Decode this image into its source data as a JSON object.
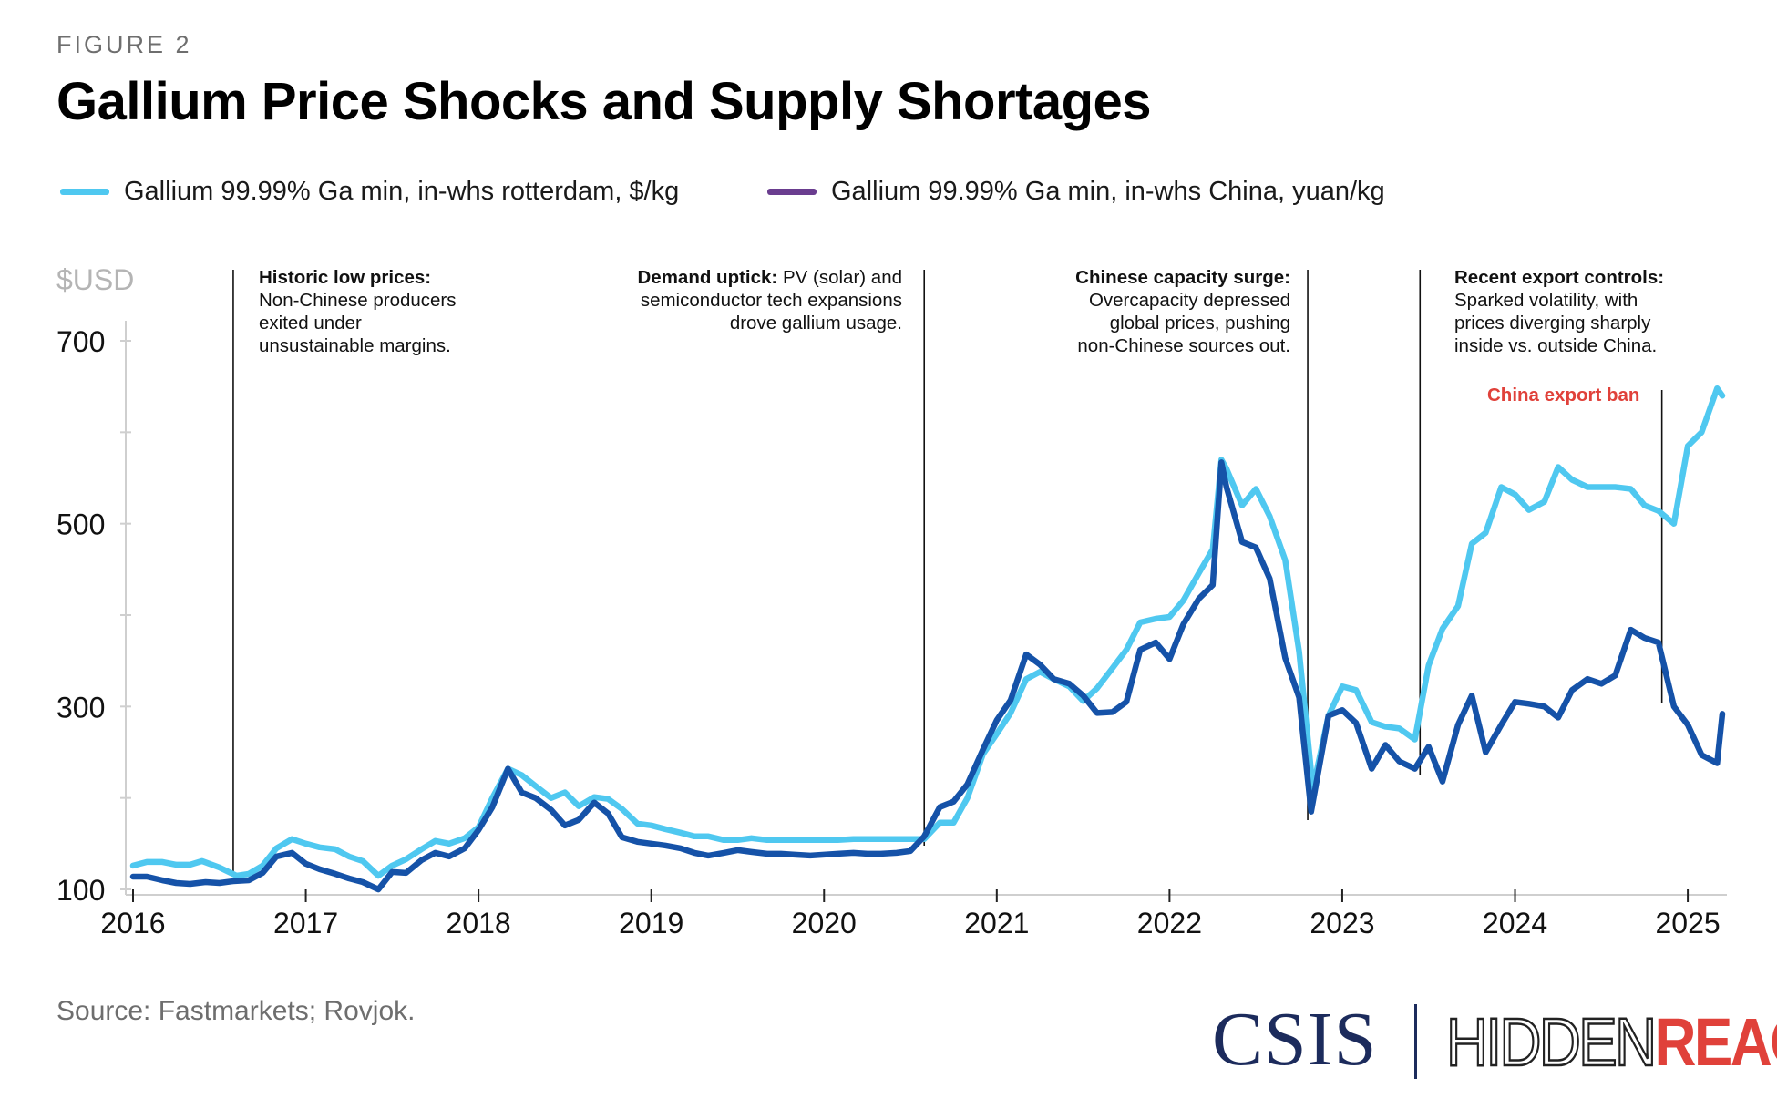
{
  "figure_label": "FIGURE 2",
  "title": "Gallium Price Shocks and Supply Shortages",
  "legend": [
    {
      "label": "Gallium 99.99% Ga min, in-whs rotterdam, $/kg",
      "color": "#4fc8f0"
    },
    {
      "label": "Gallium 99.99% Ga min, in-whs China, yuan/kg",
      "color": "#6a3d8f"
    }
  ],
  "annotations": [
    {
      "bold": "Historic low prices:",
      "text": "Non-Chinese producers exited under unsustainable margins.",
      "lines": [
        "Non-Chinese producers",
        "exited under",
        "unsustainable margins."
      ]
    },
    {
      "bold": "Demand uptick:",
      "text": "PV (solar) and semiconductor tech expansions drove gallium usage.",
      "first": "PV (solar) and",
      "lines": [
        "semiconductor tech expansions",
        "drove gallium usage."
      ]
    },
    {
      "bold": "Chinese capacity surge:",
      "lines": [
        "Overcapacity depressed",
        "global prices, pushing",
        "non-Chinese sources out."
      ]
    },
    {
      "bold": "Recent export controls:",
      "lines": [
        "Sparked volatility, with",
        "prices diverging sharply",
        "inside vs. outside China."
      ]
    }
  ],
  "ban_label": "China export ban",
  "source": "Source: Fastmarkets; Rovjok.",
  "logos": {
    "csis": "CSIS",
    "hidden": "HIDDEN",
    "reach": "REACH"
  },
  "chart_data": {
    "type": "line",
    "ylabel": "$USD",
    "ylim": [
      100,
      700
    ],
    "yticks": [
      100,
      300,
      500,
      700
    ],
    "y_minor_ticks": [
      200,
      400,
      600
    ],
    "xlim": [
      2016,
      2025.2
    ],
    "xticks": [
      "2016",
      "2017",
      "2018",
      "2019",
      "2020",
      "2021",
      "2022",
      "2023",
      "2024",
      "2025"
    ],
    "grid": false,
    "legend_position": "top-left",
    "event_lines": [
      2016.58,
      2020.58,
      2022.8,
      2023.45,
      2024.85
    ],
    "series": [
      {
        "name": "Gallium 99.99% Ga min, in-whs rotterdam, $/kg",
        "color": "#4fc8f0",
        "points": [
          [
            2016.0,
            126
          ],
          [
            2016.08,
            130
          ],
          [
            2016.17,
            130
          ],
          [
            2016.25,
            127
          ],
          [
            2016.33,
            127
          ],
          [
            2016.4,
            131
          ],
          [
            2016.5,
            124
          ],
          [
            2016.6,
            115
          ],
          [
            2016.67,
            117
          ],
          [
            2016.75,
            126
          ],
          [
            2016.83,
            145
          ],
          [
            2016.92,
            155
          ],
          [
            2017.0,
            150
          ],
          [
            2017.08,
            146
          ],
          [
            2017.17,
            144
          ],
          [
            2017.25,
            136
          ],
          [
            2017.33,
            131
          ],
          [
            2017.42,
            115
          ],
          [
            2017.5,
            126
          ],
          [
            2017.58,
            133
          ],
          [
            2017.67,
            144
          ],
          [
            2017.75,
            153
          ],
          [
            2017.83,
            150
          ],
          [
            2017.92,
            156
          ],
          [
            2018.0,
            168
          ],
          [
            2018.08,
            200
          ],
          [
            2018.17,
            232
          ],
          [
            2018.25,
            225
          ],
          [
            2018.33,
            213
          ],
          [
            2018.42,
            200
          ],
          [
            2018.5,
            206
          ],
          [
            2018.58,
            191
          ],
          [
            2018.67,
            201
          ],
          [
            2018.75,
            199
          ],
          [
            2018.83,
            188
          ],
          [
            2018.92,
            172
          ],
          [
            2019.0,
            170
          ],
          [
            2019.08,
            166
          ],
          [
            2019.17,
            162
          ],
          [
            2019.25,
            158
          ],
          [
            2019.33,
            158
          ],
          [
            2019.42,
            154
          ],
          [
            2019.5,
            154
          ],
          [
            2019.58,
            156
          ],
          [
            2019.67,
            154
          ],
          [
            2019.75,
            154
          ],
          [
            2019.83,
            154
          ],
          [
            2019.92,
            154
          ],
          [
            2020.0,
            154
          ],
          [
            2020.08,
            154
          ],
          [
            2020.17,
            155
          ],
          [
            2020.25,
            155
          ],
          [
            2020.33,
            155
          ],
          [
            2020.42,
            155
          ],
          [
            2020.5,
            155
          ],
          [
            2020.58,
            155
          ],
          [
            2020.67,
            173
          ],
          [
            2020.75,
            173
          ],
          [
            2020.83,
            200
          ],
          [
            2020.92,
            248
          ],
          [
            2021.0,
            270
          ],
          [
            2021.08,
            293
          ],
          [
            2021.17,
            330
          ],
          [
            2021.25,
            338
          ],
          [
            2021.33,
            330
          ],
          [
            2021.42,
            322
          ],
          [
            2021.5,
            306
          ],
          [
            2021.58,
            320
          ],
          [
            2021.67,
            342
          ],
          [
            2021.75,
            362
          ],
          [
            2021.83,
            392
          ],
          [
            2021.92,
            396
          ],
          [
            2022.0,
            398
          ],
          [
            2022.08,
            416
          ],
          [
            2022.17,
            446
          ],
          [
            2022.25,
            472
          ],
          [
            2022.3,
            570
          ],
          [
            2022.33,
            560
          ],
          [
            2022.42,
            520
          ],
          [
            2022.5,
            538
          ],
          [
            2022.58,
            508
          ],
          [
            2022.67,
            460
          ],
          [
            2022.75,
            360
          ],
          [
            2022.83,
            210
          ],
          [
            2022.92,
            290
          ],
          [
            2023.0,
            322
          ],
          [
            2023.08,
            318
          ],
          [
            2023.17,
            283
          ],
          [
            2023.25,
            278
          ],
          [
            2023.33,
            276
          ],
          [
            2023.42,
            264
          ],
          [
            2023.5,
            345
          ],
          [
            2023.58,
            385
          ],
          [
            2023.67,
            410
          ],
          [
            2023.75,
            478
          ],
          [
            2023.83,
            490
          ],
          [
            2023.92,
            540
          ],
          [
            2024.0,
            532
          ],
          [
            2024.08,
            515
          ],
          [
            2024.17,
            524
          ],
          [
            2024.25,
            562
          ],
          [
            2024.33,
            548
          ],
          [
            2024.42,
            540
          ],
          [
            2024.5,
            540
          ],
          [
            2024.58,
            540
          ],
          [
            2024.67,
            538
          ],
          [
            2024.75,
            520
          ],
          [
            2024.83,
            514
          ],
          [
            2024.92,
            500
          ],
          [
            2025.0,
            585
          ],
          [
            2025.08,
            600
          ],
          [
            2025.17,
            648
          ],
          [
            2025.2,
            640
          ]
        ]
      },
      {
        "name": "Gallium 99.99% Ga min, in-whs China, yuan/kg",
        "color": "#1552a8",
        "points": [
          [
            2016.0,
            114
          ],
          [
            2016.08,
            114
          ],
          [
            2016.17,
            110
          ],
          [
            2016.25,
            107
          ],
          [
            2016.33,
            106
          ],
          [
            2016.42,
            108
          ],
          [
            2016.5,
            107
          ],
          [
            2016.58,
            109
          ],
          [
            2016.67,
            110
          ],
          [
            2016.75,
            118
          ],
          [
            2016.83,
            136
          ],
          [
            2016.92,
            140
          ],
          [
            2017.0,
            128
          ],
          [
            2017.08,
            122
          ],
          [
            2017.17,
            117
          ],
          [
            2017.25,
            112
          ],
          [
            2017.33,
            108
          ],
          [
            2017.42,
            100
          ],
          [
            2017.5,
            119
          ],
          [
            2017.58,
            118
          ],
          [
            2017.67,
            132
          ],
          [
            2017.75,
            140
          ],
          [
            2017.83,
            136
          ],
          [
            2017.92,
            145
          ],
          [
            2018.0,
            165
          ],
          [
            2018.08,
            190
          ],
          [
            2018.17,
            232
          ],
          [
            2018.25,
            206
          ],
          [
            2018.33,
            200
          ],
          [
            2018.42,
            187
          ],
          [
            2018.5,
            170
          ],
          [
            2018.58,
            176
          ],
          [
            2018.67,
            195
          ],
          [
            2018.75,
            183
          ],
          [
            2018.83,
            157
          ],
          [
            2018.92,
            152
          ],
          [
            2019.0,
            150
          ],
          [
            2019.08,
            148
          ],
          [
            2019.17,
            145
          ],
          [
            2019.25,
            140
          ],
          [
            2019.33,
            137
          ],
          [
            2019.42,
            140
          ],
          [
            2019.5,
            143
          ],
          [
            2019.58,
            141
          ],
          [
            2019.67,
            139
          ],
          [
            2019.75,
            139
          ],
          [
            2019.83,
            138
          ],
          [
            2019.92,
            137
          ],
          [
            2020.0,
            138
          ],
          [
            2020.08,
            139
          ],
          [
            2020.17,
            140
          ],
          [
            2020.25,
            139
          ],
          [
            2020.33,
            139
          ],
          [
            2020.42,
            140
          ],
          [
            2020.5,
            142
          ],
          [
            2020.58,
            158
          ],
          [
            2020.67,
            190
          ],
          [
            2020.75,
            196
          ],
          [
            2020.83,
            215
          ],
          [
            2020.92,
            253
          ],
          [
            2021.0,
            285
          ],
          [
            2021.08,
            307
          ],
          [
            2021.17,
            357
          ],
          [
            2021.25,
            346
          ],
          [
            2021.33,
            330
          ],
          [
            2021.42,
            325
          ],
          [
            2021.5,
            312
          ],
          [
            2021.58,
            293
          ],
          [
            2021.67,
            294
          ],
          [
            2021.75,
            305
          ],
          [
            2021.83,
            362
          ],
          [
            2021.92,
            370
          ],
          [
            2022.0,
            352
          ],
          [
            2022.08,
            390
          ],
          [
            2022.17,
            418
          ],
          [
            2022.25,
            433
          ],
          [
            2022.3,
            567
          ],
          [
            2022.33,
            540
          ],
          [
            2022.42,
            480
          ],
          [
            2022.5,
            474
          ],
          [
            2022.58,
            440
          ],
          [
            2022.67,
            353
          ],
          [
            2022.75,
            310
          ],
          [
            2022.82,
            185
          ],
          [
            2022.92,
            290
          ],
          [
            2023.0,
            296
          ],
          [
            2023.08,
            282
          ],
          [
            2023.17,
            232
          ],
          [
            2023.25,
            258
          ],
          [
            2023.33,
            240
          ],
          [
            2023.42,
            232
          ],
          [
            2023.5,
            256
          ],
          [
            2023.58,
            218
          ],
          [
            2023.67,
            280
          ],
          [
            2023.75,
            312
          ],
          [
            2023.83,
            250
          ],
          [
            2023.92,
            280
          ],
          [
            2024.0,
            305
          ],
          [
            2024.08,
            303
          ],
          [
            2024.17,
            300
          ],
          [
            2024.25,
            288
          ],
          [
            2024.33,
            318
          ],
          [
            2024.42,
            330
          ],
          [
            2024.5,
            325
          ],
          [
            2024.58,
            334
          ],
          [
            2024.67,
            384
          ],
          [
            2024.75,
            375
          ],
          [
            2024.83,
            370
          ],
          [
            2024.92,
            300
          ],
          [
            2025.0,
            280
          ],
          [
            2025.08,
            247
          ],
          [
            2025.17,
            238
          ],
          [
            2025.2,
            292
          ]
        ]
      }
    ]
  }
}
